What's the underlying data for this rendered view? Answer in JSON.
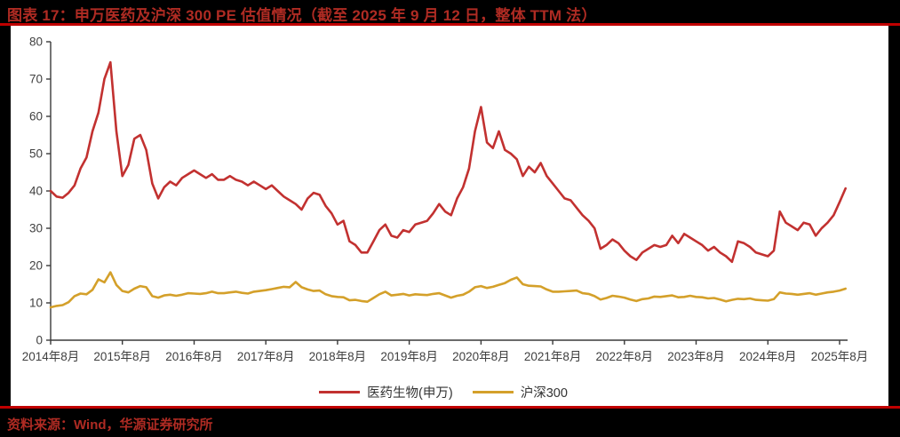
{
  "header": {
    "figure_label": "图表 17",
    "title": "图表 17：申万医药及沪深 300 PE 估值情况（截至 2025 年 9 月 12 日，整体 TTM 法）"
  },
  "footer": {
    "source": "资料来源：Wind，华源证券研究所"
  },
  "colors": {
    "page_bg": "#000000",
    "card_bg": "#FFFFFF",
    "rule_red": "#C00000",
    "title_red": "#AF2B23",
    "series_pharma_red": "#C23130",
    "series_csi300_gold": "#D4A02A",
    "axis_line": "#3A3A3A",
    "axis_text": "#404040"
  },
  "chart_data": {
    "type": "line",
    "title": "申万医药及沪深300 PE 估值（整体TTM法）",
    "x_start": "2014-08",
    "x_end": "2025-09",
    "frequency": "monthly",
    "points_per_year": 12,
    "grid": false,
    "legend_position": "bottom",
    "ylim": [
      0,
      80
    ],
    "y_ticks": [
      0,
      10,
      20,
      30,
      40,
      50,
      60,
      70,
      80
    ],
    "x_tick_labels": [
      "2014年8月",
      "2015年8月",
      "2016年8月",
      "2017年8月",
      "2018年8月",
      "2019年8月",
      "2020年8月",
      "2021年8月",
      "2022年8月",
      "2023年8月",
      "2024年8月",
      "2025年8月"
    ],
    "series": [
      {
        "name": "医药生物(申万)",
        "color_key": "series_pharma_red",
        "values": [
          40,
          38.5,
          38.2,
          39.5,
          41.5,
          46,
          49,
          56,
          61,
          70,
          74.5,
          56,
          44,
          47,
          54,
          55,
          51,
          42,
          38,
          41,
          42.5,
          41.5,
          43.5,
          44.5,
          45.5,
          44.5,
          43.5,
          44.5,
          43,
          43,
          44,
          43,
          42.5,
          41.5,
          42.5,
          41.5,
          40.5,
          41.5,
          40,
          38.5,
          37.5,
          36.5,
          35,
          38,
          39.5,
          39,
          36,
          34,
          31,
          32,
          26.5,
          25.5,
          23.5,
          23.5,
          26.5,
          29.5,
          31,
          28,
          27.5,
          29.5,
          29,
          31,
          31.5,
          32,
          34,
          36.5,
          34.5,
          33.5,
          38,
          41,
          46,
          56,
          62.5,
          53,
          51.5,
          56,
          51,
          50,
          48.5,
          44,
          46.5,
          45,
          47.5,
          44,
          42,
          40,
          38,
          37.5,
          35.5,
          33.5,
          32,
          30,
          24.5,
          25.5,
          27,
          26,
          24,
          22.5,
          21.5,
          23.5,
          24.5,
          25.5,
          25,
          25.5,
          28,
          26,
          28.5,
          27.5,
          26.5,
          25.5,
          24,
          25,
          23.5,
          22.5,
          21,
          26.5,
          26,
          25,
          23.5,
          23,
          22.5,
          24,
          34.5,
          31.5,
          30.5,
          29.5,
          31.5,
          31,
          28,
          30,
          31.5,
          33.5,
          37,
          40.7
        ]
      },
      {
        "name": "沪深300",
        "color_key": "series_csi300_gold",
        "values": [
          8.8,
          9.2,
          9.4,
          10.2,
          11.8,
          12.5,
          12.3,
          13.5,
          16.3,
          15.5,
          18.2,
          14.8,
          13.2,
          12.8,
          13.8,
          14.5,
          14.2,
          11.8,
          11.4,
          12,
          12.2,
          11.9,
          12.2,
          12.6,
          12.5,
          12.4,
          12.6,
          13,
          12.6,
          12.6,
          12.8,
          13,
          12.7,
          12.5,
          13,
          13.2,
          13.4,
          13.7,
          14,
          14.3,
          14.2,
          15.6,
          14.2,
          13.6,
          13.2,
          13.3,
          12.3,
          11.8,
          11.6,
          11.5,
          10.7,
          10.8,
          10.5,
          10.3,
          11.3,
          12.3,
          13,
          12,
          12.2,
          12.4,
          12,
          12.3,
          12.2,
          12.1,
          12.4,
          12.6,
          12,
          11.4,
          11.9,
          12.2,
          13,
          14.2,
          14.5,
          14,
          14.3,
          14.8,
          15.3,
          16.2,
          16.8,
          15,
          14.6,
          14.5,
          14.4,
          13.6,
          13,
          13,
          13.1,
          13.2,
          13.3,
          12.6,
          12.4,
          11.8,
          10.9,
          11.3,
          11.9,
          11.7,
          11.4,
          10.9,
          10.5,
          11,
          11.2,
          11.7,
          11.6,
          11.8,
          12,
          11.5,
          11.6,
          11.9,
          11.6,
          11.5,
          11.2,
          11.3,
          10.9,
          10.4,
          10.8,
          11.1,
          11,
          11.2,
          10.8,
          10.7,
          10.6,
          11,
          12.8,
          12.5,
          12.4,
          12.2,
          12.4,
          12.6,
          12.2,
          12.5,
          12.8,
          13,
          13.3,
          13.8
        ]
      }
    ]
  }
}
